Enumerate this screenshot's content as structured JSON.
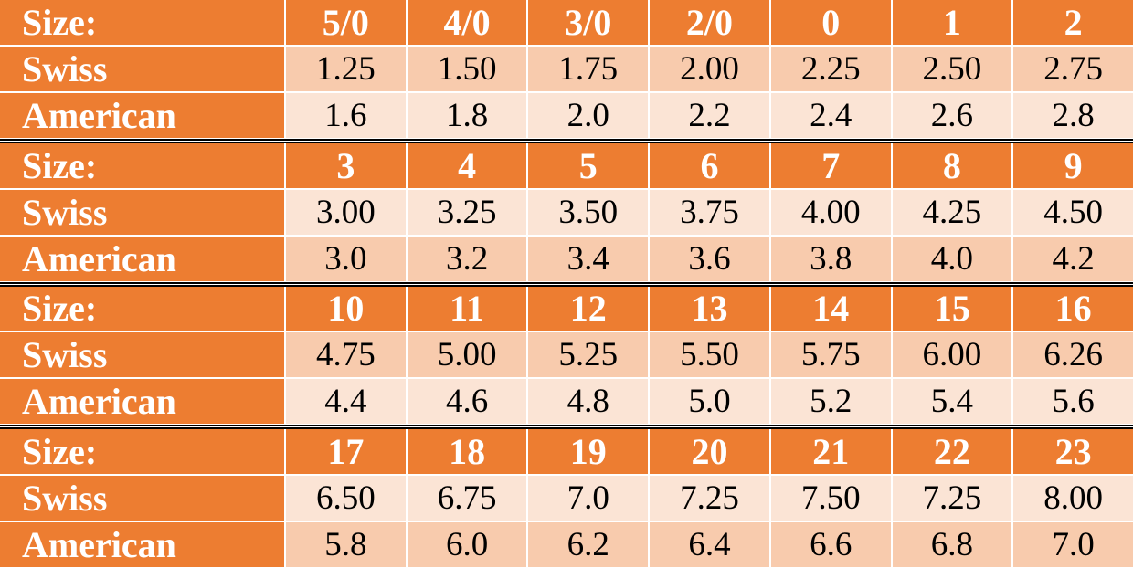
{
  "blocks": [
    {
      "header": [
        "Size:",
        "5/0",
        "4/0",
        "3/0",
        "2/0",
        "0",
        "1",
        "2"
      ],
      "swiss": [
        "Swiss",
        "1.25",
        "1.50",
        "1.75",
        "2.00",
        "2.25",
        "2.50",
        "2.75"
      ],
      "american": [
        "American",
        "1.6",
        "1.8",
        "2.0",
        "2.2",
        "2.4",
        "2.6",
        "2.8"
      ]
    },
    {
      "header": [
        "Size:",
        "3",
        "4",
        "5",
        "6",
        "7",
        "8",
        "9"
      ],
      "swiss": [
        "Swiss",
        "3.00",
        "3.25",
        "3.50",
        "3.75",
        "4.00",
        "4.25",
        "4.50"
      ],
      "american": [
        "American",
        "3.0",
        "3.2",
        "3.4",
        "3.6",
        "3.8",
        "4.0",
        "4.2"
      ]
    },
    {
      "header": [
        "Size:",
        "10",
        "11",
        "12",
        "13",
        "14",
        "15",
        "16"
      ],
      "swiss": [
        "Swiss",
        "4.75",
        "5.00",
        "5.25",
        "5.50",
        "5.75",
        "6.00",
        "6.26"
      ],
      "american": [
        "American",
        "4.4",
        "4.6",
        "4.8",
        "5.0",
        "5.2",
        "5.4",
        "5.6"
      ]
    },
    {
      "header": [
        "Size:",
        "17",
        "18",
        "19",
        "20",
        "21",
        "22",
        "23"
      ],
      "swiss": [
        "Swiss",
        "6.50",
        "6.75",
        "7.0",
        "7.25",
        "7.50",
        "7.25",
        "8.00"
      ],
      "american": [
        "American",
        "5.8",
        "6.0",
        "6.2",
        "6.4",
        "6.6",
        "6.8",
        "7.0"
      ]
    }
  ]
}
